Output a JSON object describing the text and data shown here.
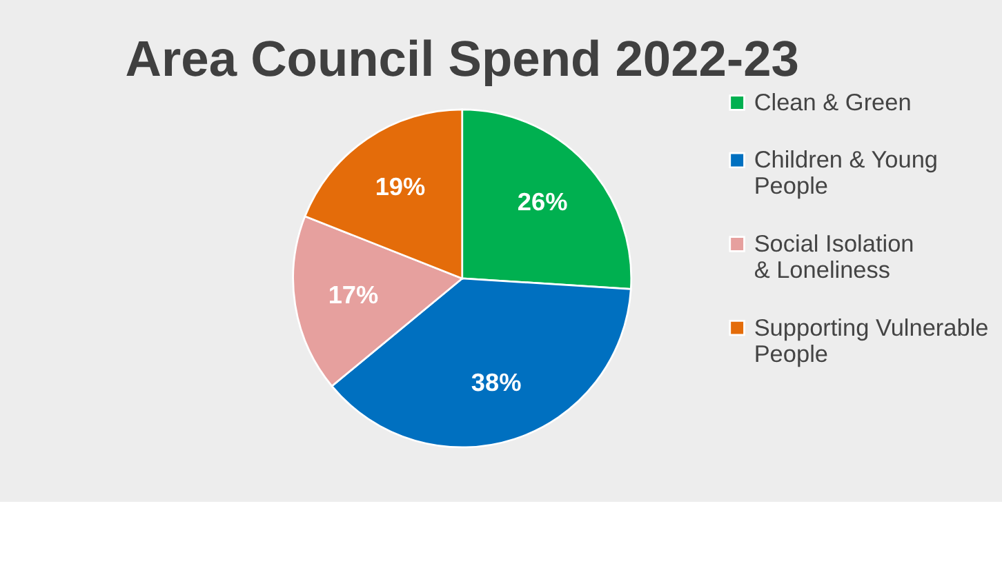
{
  "chart_data": {
    "type": "pie",
    "title": "Area Council Spend 2022-23",
    "categories": [
      "Clean & Green",
      "Children & Young People",
      "Social Isolation & Loneliness",
      "Supporting Vulnerable People"
    ],
    "values": [
      26,
      38,
      17,
      19
    ],
    "colors": [
      "#00b050",
      "#0070c0",
      "#e6a09e",
      "#e46c0a"
    ],
    "value_labels": [
      "26%",
      "38%",
      "17%",
      "19%"
    ],
    "legend": "right"
  }
}
